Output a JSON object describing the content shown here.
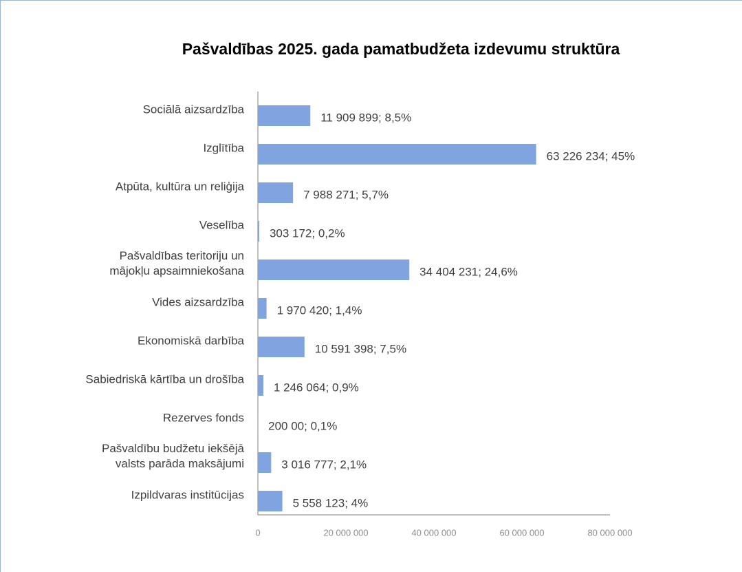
{
  "chart_data": {
    "type": "barh",
    "title": "Pašvaldības 2025. gada pamatbudžeta izdevumu struktūra",
    "categories": [
      "Sociālā aizsardzība",
      "Izglītība",
      "Atpūta, kultūra un reliģija",
      "Veselība",
      "Pašvaldības teritoriju un\nmājokļu apsaimniekošana",
      "Vides aizsardzība",
      "Ekonomiskā darbība",
      "Sabiedriskā kārtība un drošība",
      "Rezerves fonds",
      "Pašvaldību budžetu iekšējā\nvalsts parāda maksājumi",
      "Izpildvaras institūcijas"
    ],
    "values": [
      11909899,
      63226234,
      7988271,
      303172,
      34404231,
      1970420,
      10591398,
      1246064,
      20000,
      3016777,
      5558123
    ],
    "value_labels": [
      "11 909 899; 8,5%",
      "63 226 234; 45%",
      "7 988 271; 5,7%",
      "303 172; 0,2%",
      "34 404 231; 24,6%",
      "1 970 420; 1,4%",
      "10 591 398; 7,5%",
      "1 246 064; 0,9%",
      "200 00; 0,1%",
      "3 016 777; 2,1%",
      "5 558 123; 4%"
    ],
    "color": "#7fa4e0",
    "xlim": [
      0,
      80000000
    ],
    "xticks": [
      0,
      {
        "value": 20000000,
        "label": "20 000 000"
      },
      {
        "value": 40000000,
        "label": "40 000 000"
      },
      {
        "value": 60000000,
        "label": "60 000 000"
      },
      {
        "value": 80000000,
        "label": "80 000 000"
      }
    ],
    "grid": false
  }
}
